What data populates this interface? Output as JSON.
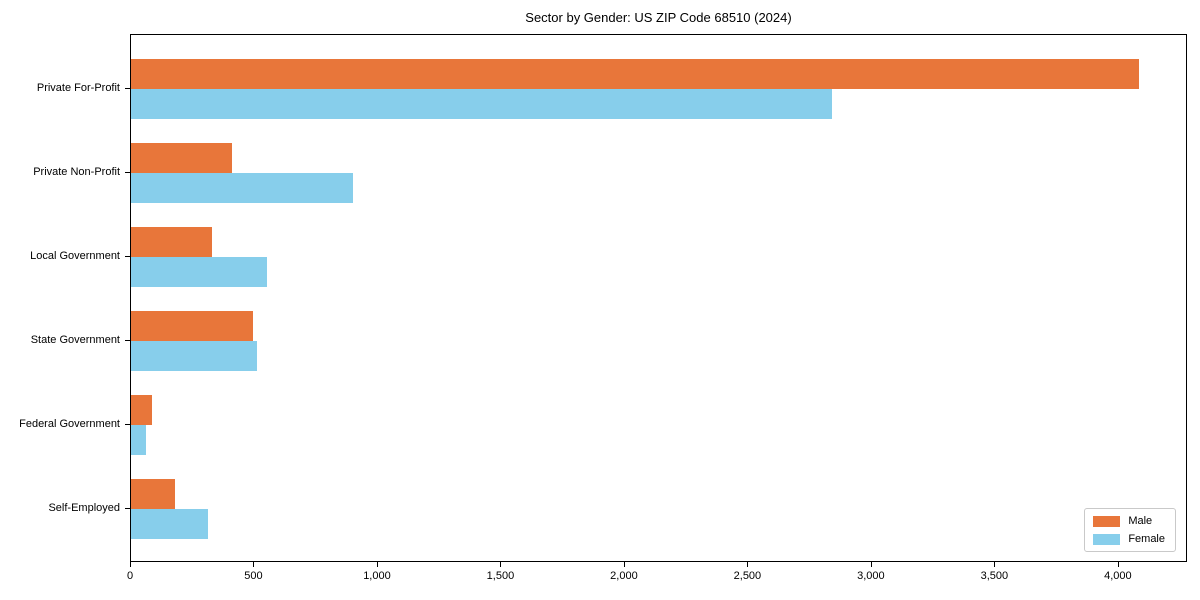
{
  "chart_data": {
    "type": "bar",
    "orientation": "horizontal",
    "title": "Sector by Gender: US ZIP Code 68510 (2024)",
    "categories": [
      "Private For-Profit",
      "Private Non-Profit",
      "Local Government",
      "State Government",
      "Federal Government",
      "Self-Employed"
    ],
    "series": [
      {
        "name": "Male",
        "color": "#e8763a",
        "values": [
          4080,
          410,
          330,
          495,
          85,
          180
        ]
      },
      {
        "name": "Female",
        "color": "#87ceeb",
        "values": [
          2840,
          900,
          550,
          510,
          60,
          310
        ]
      }
    ],
    "xlabel": "",
    "ylabel": "",
    "xlim": [
      0,
      4280
    ],
    "xticks": [
      0,
      500,
      1000,
      1500,
      2000,
      2500,
      3000,
      3500,
      4000
    ],
    "xtick_labels": [
      "0",
      "500",
      "1,000",
      "1,500",
      "2,000",
      "2,500",
      "3,000",
      "3,500",
      "4,000"
    ],
    "grid": false,
    "legend": {
      "position": "lower-right",
      "entries": [
        "Male",
        "Female"
      ]
    }
  }
}
